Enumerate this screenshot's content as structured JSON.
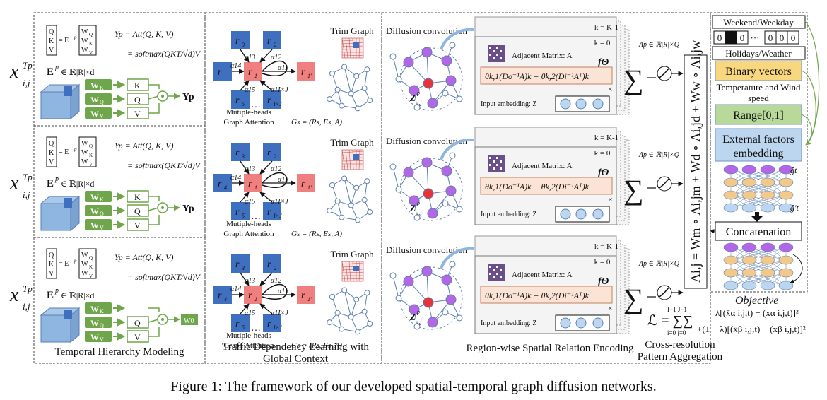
{
  "caption": "Figure 1: The framework of our developed spatial-temporal graph diffusion networks.",
  "temporal": {
    "section_label": "Temporal Hierarchy Modeling",
    "input_symbol": "x",
    "input_sup": "Tp",
    "input_sub": "i,j",
    "qkv_vector": [
      "Q",
      "K",
      "V"
    ],
    "proj_eq": "= E",
    "proj_sup": "p",
    "proj_matrix": [
      "W",
      "W",
      "W"
    ],
    "proj_matrix_subs": [
      "Q",
      "K",
      "V"
    ],
    "embed_label": "E",
    "embed_sup": "p",
    "embed_dims": "∈ ℝ|R|×d",
    "att_eq1": "Yp = Att(Q, K, V)",
    "att_eq2": "= softmax(QKT/√d)V",
    "weights": [
      "W",
      "W",
      "W"
    ],
    "weight_subs": [
      "K",
      "Q",
      "V"
    ],
    "qkv_boxes": [
      "K",
      "Q",
      "V"
    ],
    "output_label": "Yp",
    "w0_label": "W0"
  },
  "traffic": {
    "section_label_line1": "Traffic Dependency Learning with",
    "section_label_line2": "Global Context",
    "trim_graph": "Trim Graph",
    "graph_attention_line1": "Mutiple-heads",
    "graph_attention_line2": "Graph Attention",
    "nodes_top": [
      "r",
      "r"
    ],
    "nodes_top_subs": [
      "3",
      "2"
    ],
    "nodes_left_first": "r",
    "nodes_left_rest_sub": "4",
    "center_node": "r",
    "center_sub": "1",
    "output_node": "r",
    "output_sub": "1'",
    "bottom_left": "r",
    "bottom_left_sub": "5",
    "bottom_right": "r",
    "bottom_right_sub": "I×J",
    "alphas": [
      "α14",
      "α13",
      "α12",
      "α11",
      "α15",
      "α1I×J"
    ],
    "gs_formula": "Gs = (Rs, Es, A)"
  },
  "spatial": {
    "section_label": "Region-wise Spatial Relation Encoding",
    "diffusion_conv": "Diffusion convolution",
    "k_top": "k = K-1",
    "k_zero": "k = 0",
    "adjacent": "Adjacent Matrix: A",
    "f_theta": "fΘ",
    "diffusion_formula": "θk,1(Do⁻¹A)k + θk,2(Di⁻¹Aᵀ)k",
    "times": "×",
    "input_embedding": "Input embedding: Z",
    "z_label": "Z",
    "z_sup": "p",
    "z_sub": "i,j",
    "lambda": "Λp ∈ ℝ|R|×Q",
    "sum_symbol": "∑"
  },
  "aggregation": {
    "section_label_line1": "Cross-resolution",
    "section_label_line2": "Pattern Aggregation",
    "vertical_formula": "Λi,j = Wm ∘ Λi,jm + Wd ∘ Λi,jd + Ww ∘ Λi,jw",
    "loss_lhs": "ℒ = ∑∑",
    "loss_range_top": "I−1  J−1",
    "loss_range_bottom": "i=0  j=0",
    "objective": "Objective",
    "loss_line1": "λ[(x̄α i,j,t) − (xα i,j,t)]²",
    "loss_line2": "+(1 − λ)[(x̄β i,j,t) − (xβ i,j,t)]²"
  },
  "external": {
    "weekend": "Weekend/Weekday",
    "bits_left": [
      "0",
      "1",
      "0"
    ],
    "ellipsis": "···",
    "bits_right": [
      "0",
      "0",
      "0"
    ],
    "holidays": "Holidays/Weather",
    "binary": "Binary vectors",
    "temperature_line1": "Temperature and Wind",
    "temperature_line2": "speed",
    "range": "Range[0,1]",
    "ext_line1": "External factors",
    "ext_line2": "embedding",
    "g_t": "ĝt",
    "g_t_hat": "ĝ't",
    "concatenation": "Concatenation"
  },
  "colors": {
    "green": "#70a64b",
    "blue_node": "#3f6fbf",
    "red_node": "#f08080",
    "cube": "#8fb6e0",
    "purple": "#b366e6",
    "orange": "#f3c98b",
    "lightblue": "#bcd6f0",
    "yellow": "#f9d77e",
    "lightgreen": "#b9d99a",
    "pink_bg": "#fbe4d6"
  }
}
